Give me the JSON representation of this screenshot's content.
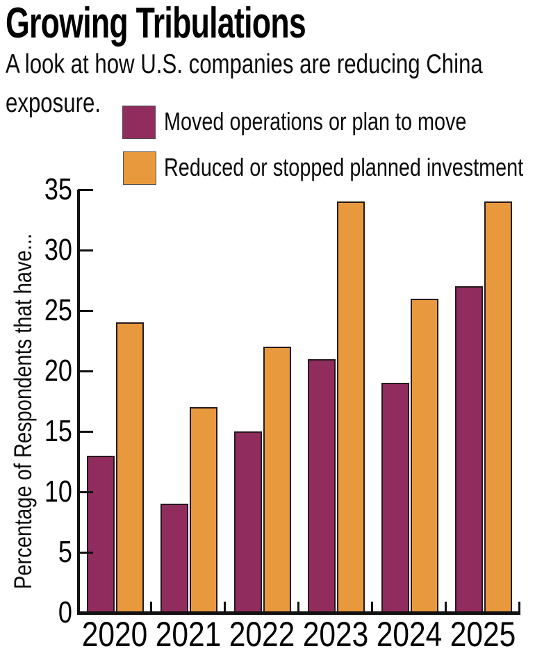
{
  "header": {
    "title": "Growing Tribulations",
    "subtitle_lines": [
      "A look at how U.S. companies are reducing China",
      "exposure."
    ]
  },
  "legend": {
    "items": [
      {
        "label": "Moved operations or plan to move",
        "color": "#912c5e"
      },
      {
        "label": "Reduced or stopped planned investment",
        "color": "#e8993e"
      }
    ]
  },
  "chart_data": {
    "type": "bar",
    "title": "Growing Tribulations",
    "subtitle": "A look at how U.S. companies are reducing China exposure.",
    "categories": [
      "2020",
      "2021",
      "2022",
      "2023",
      "2024",
      "2025"
    ],
    "series": [
      {
        "name": "Moved operations or plan to move",
        "color": "#912c5e",
        "values": [
          13,
          9,
          15,
          21,
          19,
          27
        ]
      },
      {
        "name": "Reduced or stopped planned investment",
        "color": "#e8993e",
        "values": [
          24,
          17,
          22,
          34,
          26,
          34
        ]
      }
    ],
    "xlabel": "",
    "ylabel": "Percentage of Respondents that have...",
    "ylim": [
      0,
      35
    ],
    "yticks": [
      0,
      5,
      10,
      15,
      20,
      25,
      30,
      35
    ],
    "grid": false,
    "legend_position": "top"
  },
  "colors": {
    "axis": "#111111",
    "bar_outline": "#26191c"
  }
}
